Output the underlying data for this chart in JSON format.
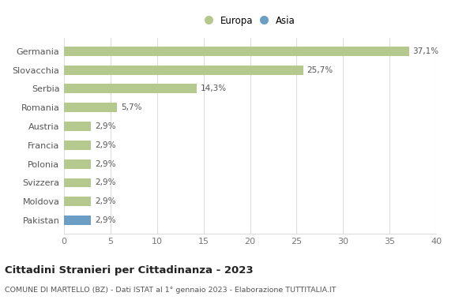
{
  "categories": [
    "Pakistan",
    "Moldova",
    "Svizzera",
    "Polonia",
    "Francia",
    "Austria",
    "Romania",
    "Serbia",
    "Slovacchia",
    "Germania"
  ],
  "values": [
    2.9,
    2.9,
    2.9,
    2.9,
    2.9,
    2.9,
    5.7,
    14.3,
    25.7,
    37.1
  ],
  "labels": [
    "2,9%",
    "2,9%",
    "2,9%",
    "2,9%",
    "2,9%",
    "2,9%",
    "5,7%",
    "14,3%",
    "25,7%",
    "37,1%"
  ],
  "colors": [
    "#6a9ec4",
    "#b5c98e",
    "#b5c98e",
    "#b5c98e",
    "#b5c98e",
    "#b5c98e",
    "#b5c98e",
    "#b5c98e",
    "#b5c98e",
    "#b5c98e"
  ],
  "europa_color": "#b5c98e",
  "asia_color": "#6a9ec4",
  "xlim": [
    0,
    40
  ],
  "xticks": [
    0,
    5,
    10,
    15,
    20,
    25,
    30,
    35,
    40
  ],
  "title": "Cittadini Stranieri per Cittadinanza - 2023",
  "subtitle": "COMUNE DI MARTELLO (BZ) - Dati ISTAT al 1° gennaio 2023 - Elaborazione TUTTITALIA.IT",
  "legend_europa": "Europa",
  "legend_asia": "Asia",
  "bg_color": "#ffffff",
  "grid_color": "#dddddd",
  "bar_height": 0.5
}
